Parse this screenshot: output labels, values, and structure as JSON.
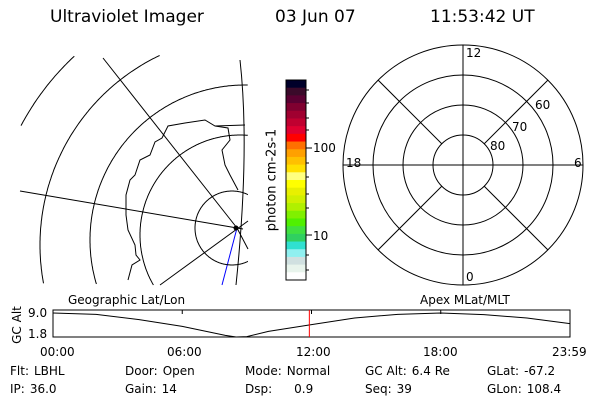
{
  "header": {
    "instrument": "Ultraviolet Imager",
    "date": "03 Jun 07",
    "time": "11:53:42 UT"
  },
  "colorbar": {
    "unit_label": "photon cm-2s-1",
    "ticks": [
      "100",
      "10"
    ],
    "colors": [
      "#00002a",
      "#3a0a2a",
      "#5a0032",
      "#800030",
      "#a00030",
      "#c00030",
      "#e00030",
      "#ff0000",
      "#ff7000",
      "#ffa000",
      "#ffc000",
      "#ffe000",
      "#ffff80",
      "#ffff00",
      "#e8f000",
      "#d0f000",
      "#b0f000",
      "#80f000",
      "#50f000",
      "#40e040",
      "#30d060",
      "#30e0d0",
      "#90f0f0",
      "#d0e0e0",
      "#e8f4ec",
      "#ffffff"
    ]
  },
  "polar_plot": {
    "mlt_labels": {
      "top": "12",
      "bottom": "0",
      "left": "18",
      "right": "6"
    },
    "lat_labels": [
      "80",
      "70",
      "60"
    ]
  },
  "orbit_plot": {
    "left_label": "Geographic Lat/Lon",
    "right_label": "Apex MLat/MLT",
    "ylabel": "GC Alt",
    "yticks": [
      "9.0",
      "1.8"
    ],
    "xticks": [
      "00:00",
      "06:00",
      "12:00",
      "18:00",
      "23:59"
    ],
    "current_marker_hour": 11.9,
    "marker_color": "#ff0000",
    "series": {
      "hours": [
        0,
        2,
        4,
        6,
        8,
        8.5,
        9,
        10,
        12,
        14,
        16,
        18,
        20,
        22,
        24
      ],
      "alt_re": [
        9.0,
        8.6,
        7.0,
        5.0,
        2.3,
        1.8,
        1.9,
        3.5,
        5.5,
        7.5,
        8.6,
        9.0,
        8.5,
        7.5,
        5.8
      ]
    }
  },
  "info": [
    {
      "label": "Flt:",
      "value": "LBHL"
    },
    {
      "label": "Door:",
      "value": "Open"
    },
    {
      "label": "Mode:",
      "value": "Normal"
    },
    {
      "label": "GC Alt:",
      "value": "6.4 Re"
    },
    {
      "label": "GLat:",
      "value": "-67.2"
    },
    {
      "label": "IP:",
      "value": "36.0"
    },
    {
      "label": "Gain:",
      "value": "14"
    },
    {
      "label": "Dsp:",
      "value": "0.9"
    },
    {
      "label": "Seq:",
      "value": "39"
    },
    {
      "label": "GLon:",
      "value": "108.4"
    }
  ]
}
